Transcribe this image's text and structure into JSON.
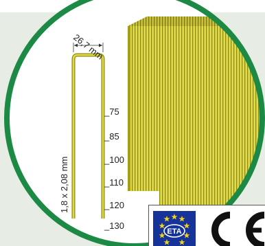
{
  "diagram": {
    "width_label": "26,7 mm",
    "wire_label": "1,8 x 2,08 mm",
    "lengths": [
      "_75",
      "_85",
      "_100",
      "_110",
      "_120",
      "_130"
    ]
  },
  "certification": {
    "eta_label": "ETA",
    "ce_label": "CE"
  },
  "colors": {
    "circle_border": "#1c8a45",
    "staple_yellow": "#d8d23a",
    "staple_olive": "#8e8a12",
    "background_band": "#e7ece4",
    "eu_blue": "#16339a",
    "eu_star": "#f2cf1a"
  }
}
